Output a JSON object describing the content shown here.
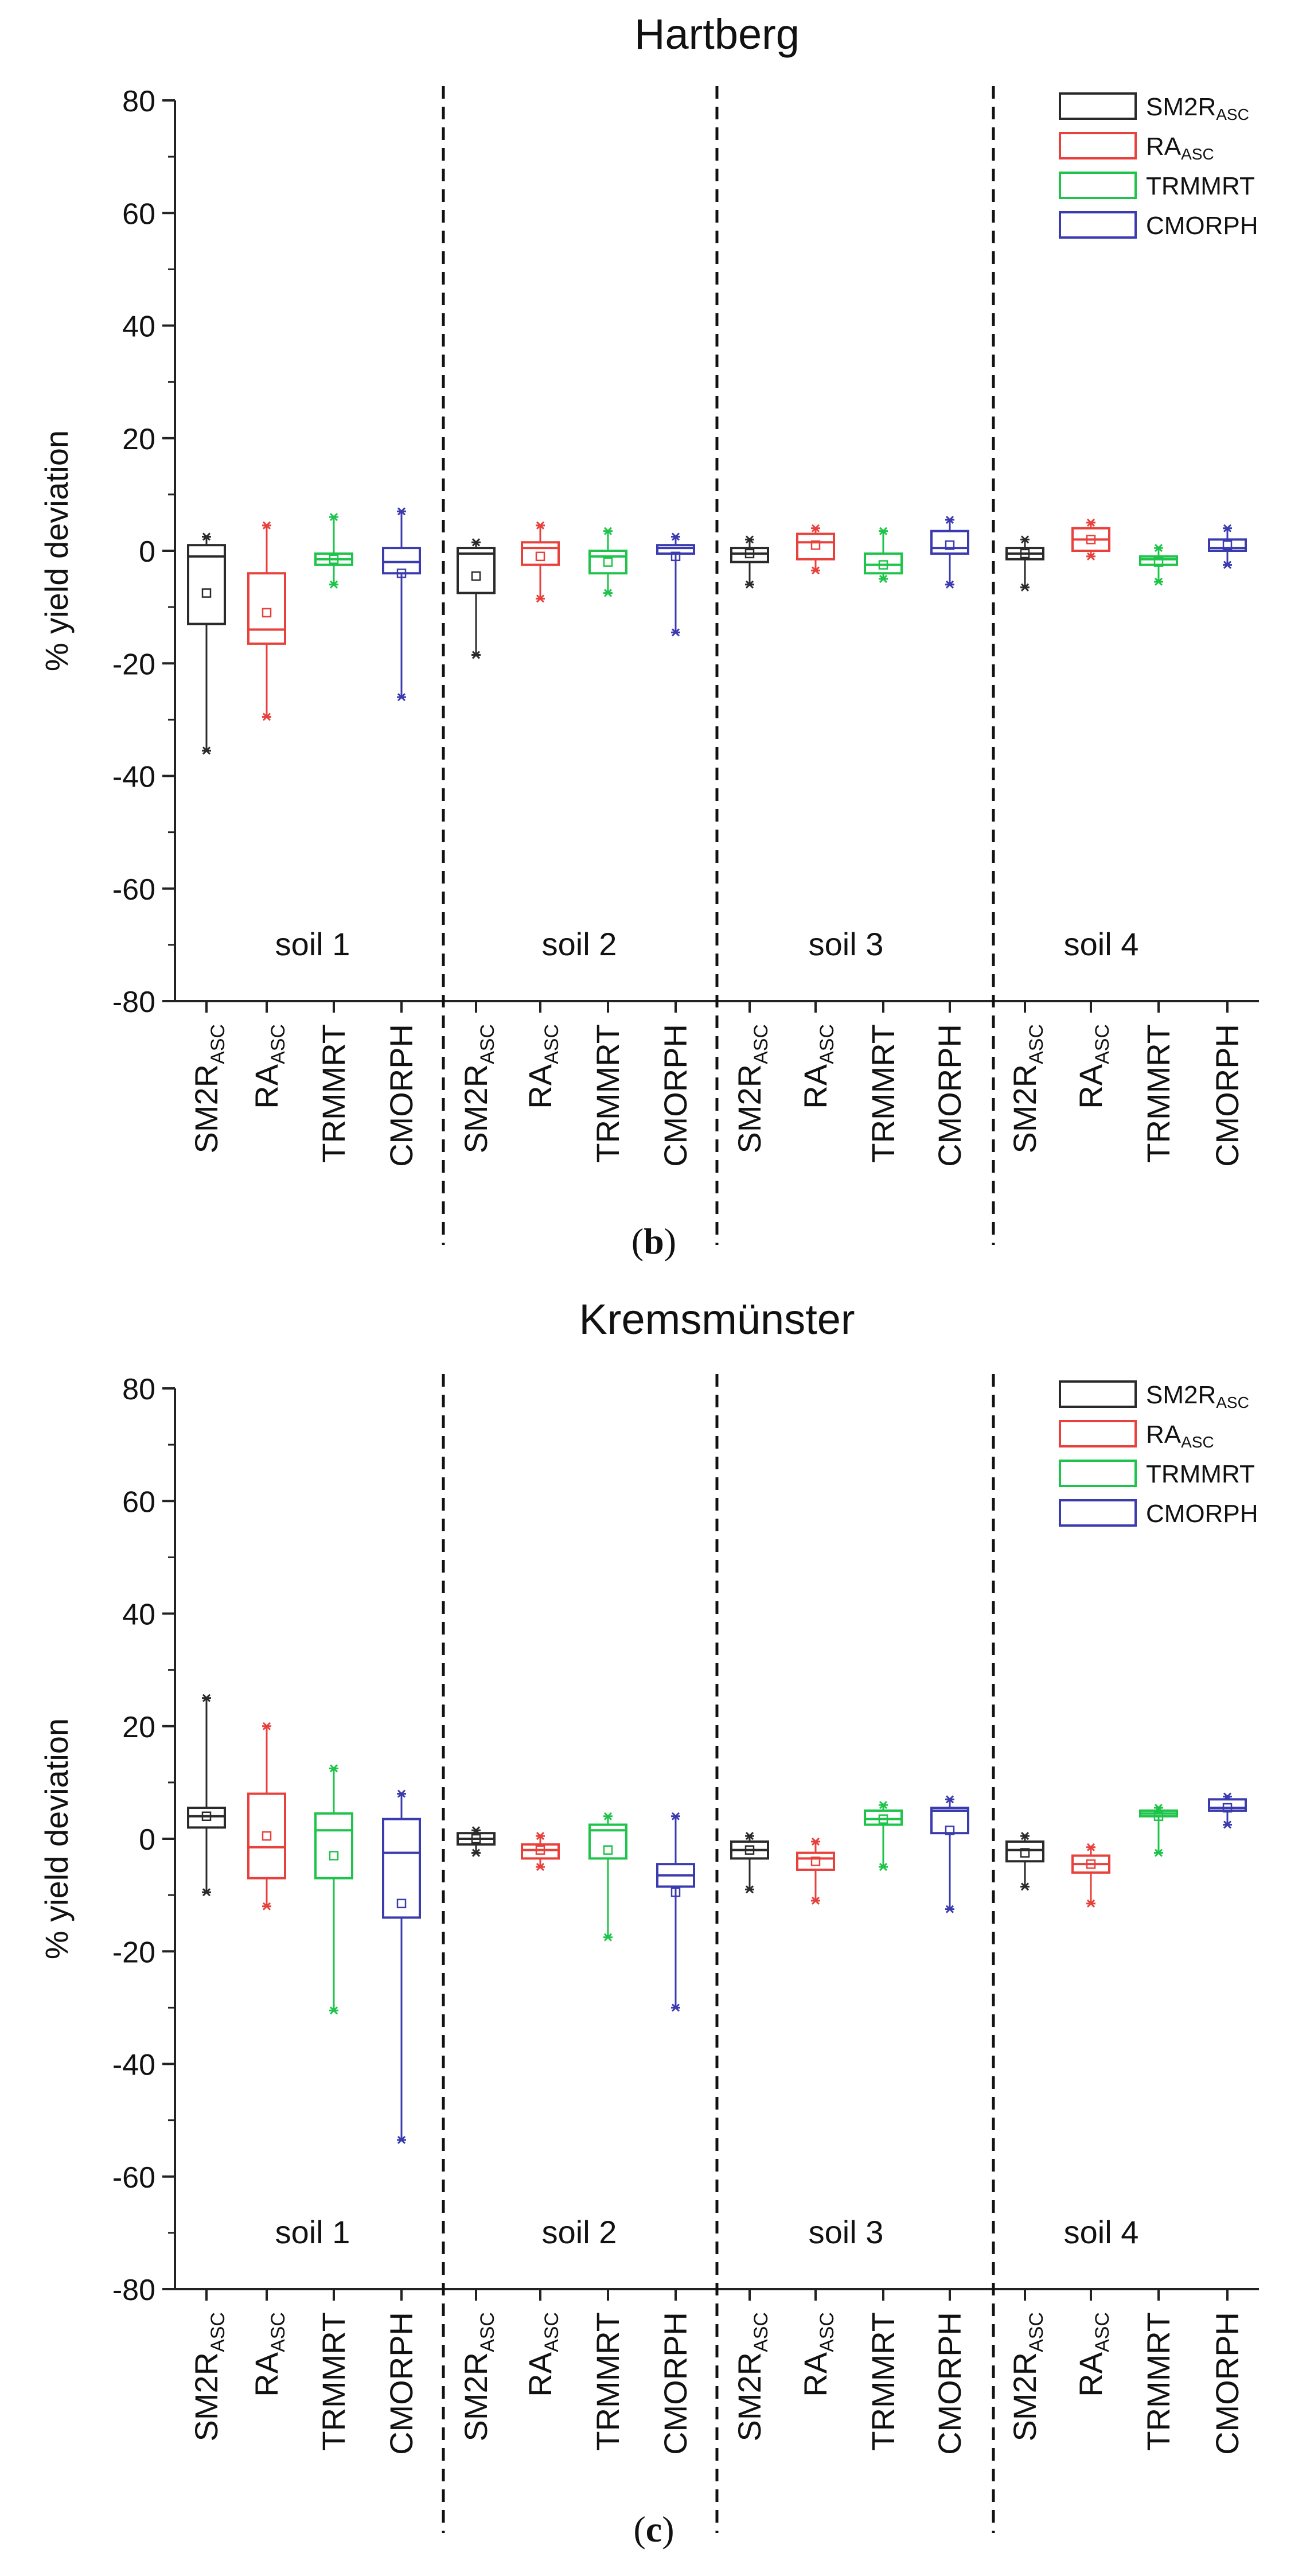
{
  "chart_data": [
    {
      "panel_label": "b",
      "type": "box",
      "title": "Hartberg",
      "xlabel": "",
      "ylabel": "% yield deviation",
      "ylim": [
        -80,
        80
      ],
      "yticks": [
        -80,
        -60,
        -40,
        -20,
        0,
        20,
        40,
        60,
        80
      ],
      "legend_position": "top-right",
      "legend": [
        {
          "base": "SM2R",
          "sub": "ASC",
          "color": "#2a2a2a"
        },
        {
          "base": "RA",
          "sub": "ASC",
          "color": "#e8413c"
        },
        {
          "base": "TRMMRT",
          "sub": "",
          "color": "#1ec44a"
        },
        {
          "base": "CMORPH",
          "sub": "",
          "color": "#3b3bb0"
        }
      ],
      "groups": [
        {
          "label": "soil 1",
          "boxes": [
            {
              "series": 0,
              "min": -35.5,
              "q1": -13,
              "median": -1,
              "q3": 1,
              "max": 2.5,
              "mean": -7.5
            },
            {
              "series": 1,
              "min": -29.5,
              "q1": -16.5,
              "median": -14,
              "q3": -4,
              "max": 4.5,
              "mean": -11
            },
            {
              "series": 2,
              "min": -6,
              "q1": -2.5,
              "median": -1.5,
              "q3": -0.5,
              "max": 6,
              "mean": -1.5
            },
            {
              "series": 3,
              "min": -26,
              "q1": -4,
              "median": -2,
              "q3": 0.5,
              "max": 7,
              "mean": -4
            }
          ]
        },
        {
          "label": "soil 2",
          "boxes": [
            {
              "series": 0,
              "min": -18.5,
              "q1": -7.5,
              "median": -0.5,
              "q3": 0.5,
              "max": 1.5,
              "mean": -4.5
            },
            {
              "series": 1,
              "min": -8.5,
              "q1": -2.5,
              "median": 0.5,
              "q3": 1.5,
              "max": 4.5,
              "mean": -1
            },
            {
              "series": 2,
              "min": -7.5,
              "q1": -4,
              "median": -1,
              "q3": 0,
              "max": 3.5,
              "mean": -2
            },
            {
              "series": 3,
              "min": -14.5,
              "q1": -0.5,
              "median": 0.5,
              "q3": 1,
              "max": 2.5,
              "mean": -1
            }
          ]
        },
        {
          "label": "soil 3",
          "boxes": [
            {
              "series": 0,
              "min": -6,
              "q1": -2,
              "median": -0.5,
              "q3": 0.5,
              "max": 2,
              "mean": -0.5
            },
            {
              "series": 1,
              "min": -3.5,
              "q1": -1.5,
              "median": 1.5,
              "q3": 3,
              "max": 4,
              "mean": 1
            },
            {
              "series": 2,
              "min": -5,
              "q1": -4,
              "median": -2.5,
              "q3": -0.5,
              "max": 3.5,
              "mean": -2.5
            },
            {
              "series": 3,
              "min": -6,
              "q1": -0.5,
              "median": 0.5,
              "q3": 3.5,
              "max": 5.5,
              "mean": 1
            }
          ]
        },
        {
          "label": "soil 4",
          "boxes": [
            {
              "series": 0,
              "min": -6.5,
              "q1": -1.5,
              "median": -0.5,
              "q3": 0.5,
              "max": 2,
              "mean": -0.5
            },
            {
              "series": 1,
              "min": -1,
              "q1": 0,
              "median": 2,
              "q3": 4,
              "max": 5,
              "mean": 2
            },
            {
              "series": 2,
              "min": -5.5,
              "q1": -2.5,
              "median": -1.5,
              "q3": -1,
              "max": 0.5,
              "mean": -2
            },
            {
              "series": 3,
              "min": -2.5,
              "q1": 0,
              "median": 0.5,
              "q3": 2,
              "max": 4,
              "mean": 1
            }
          ]
        }
      ]
    },
    {
      "panel_label": "c",
      "type": "box",
      "title": "Kremsmünster",
      "xlabel": "",
      "ylabel": "% yield deviation",
      "ylim": [
        -80,
        80
      ],
      "yticks": [
        -80,
        -60,
        -40,
        -20,
        0,
        20,
        40,
        60,
        80
      ],
      "legend_position": "top-right",
      "legend": [
        {
          "base": "SM2R",
          "sub": "ASC",
          "color": "#2a2a2a"
        },
        {
          "base": "RA",
          "sub": "ASC",
          "color": "#e8413c"
        },
        {
          "base": "TRMMRT",
          "sub": "",
          "color": "#1ec44a"
        },
        {
          "base": "CMORPH",
          "sub": "",
          "color": "#3b3bb0"
        }
      ],
      "groups": [
        {
          "label": "soil 1",
          "boxes": [
            {
              "series": 0,
              "min": -9.5,
              "q1": 2,
              "median": 4,
              "q3": 5.5,
              "max": 25,
              "mean": 4
            },
            {
              "series": 1,
              "min": -12,
              "q1": -7,
              "median": -1.5,
              "q3": 8,
              "max": 20,
              "mean": 0.5
            },
            {
              "series": 2,
              "min": -30.5,
              "q1": -7,
              "median": 1.5,
              "q3": 4.5,
              "max": 12.5,
              "mean": -3
            },
            {
              "series": 3,
              "min": -53.5,
              "q1": -14,
              "median": -2.5,
              "q3": 3.5,
              "max": 8,
              "mean": -11.5
            }
          ]
        },
        {
          "label": "soil 2",
          "boxes": [
            {
              "series": 0,
              "min": -2.5,
              "q1": -1,
              "median": 0,
              "q3": 1,
              "max": 1.5,
              "mean": 0
            },
            {
              "series": 1,
              "min": -5,
              "q1": -3.5,
              "median": -2,
              "q3": -1,
              "max": 0.5,
              "mean": -2
            },
            {
              "series": 2,
              "min": -17.5,
              "q1": -3.5,
              "median": 1.5,
              "q3": 2.5,
              "max": 4,
              "mean": -2
            },
            {
              "series": 3,
              "min": -30,
              "q1": -8.5,
              "median": -6.5,
              "q3": -4.5,
              "max": 4,
              "mean": -9.5
            }
          ]
        },
        {
          "label": "soil 3",
          "boxes": [
            {
              "series": 0,
              "min": -9,
              "q1": -3.5,
              "median": -2,
              "q3": -0.5,
              "max": 0.5,
              "mean": -2
            },
            {
              "series": 1,
              "min": -11,
              "q1": -5.5,
              "median": -3.5,
              "q3": -2.5,
              "max": -0.5,
              "mean": -4
            },
            {
              "series": 2,
              "min": -5,
              "q1": 2.5,
              "median": 3.5,
              "q3": 5,
              "max": 6,
              "mean": 3.5
            },
            {
              "series": 3,
              "min": -12.5,
              "q1": 1,
              "median": 5,
              "q3": 5.5,
              "max": 7,
              "mean": 1.5
            }
          ]
        },
        {
          "label": "soil 4",
          "boxes": [
            {
              "series": 0,
              "min": -8.5,
              "q1": -4,
              "median": -2,
              "q3": -0.5,
              "max": 0.5,
              "mean": -2.5
            },
            {
              "series": 1,
              "min": -11.5,
              "q1": -6,
              "median": -4.5,
              "q3": -3,
              "max": -1.5,
              "mean": -4.5
            },
            {
              "series": 2,
              "min": -2.5,
              "q1": 4,
              "median": 4.5,
              "q3": 5,
              "max": 5.5,
              "mean": 4
            },
            {
              "series": 3,
              "min": 2.5,
              "q1": 5,
              "median": 5.5,
              "q3": 7,
              "max": 7.5,
              "mean": 5.5
            }
          ]
        }
      ]
    }
  ]
}
